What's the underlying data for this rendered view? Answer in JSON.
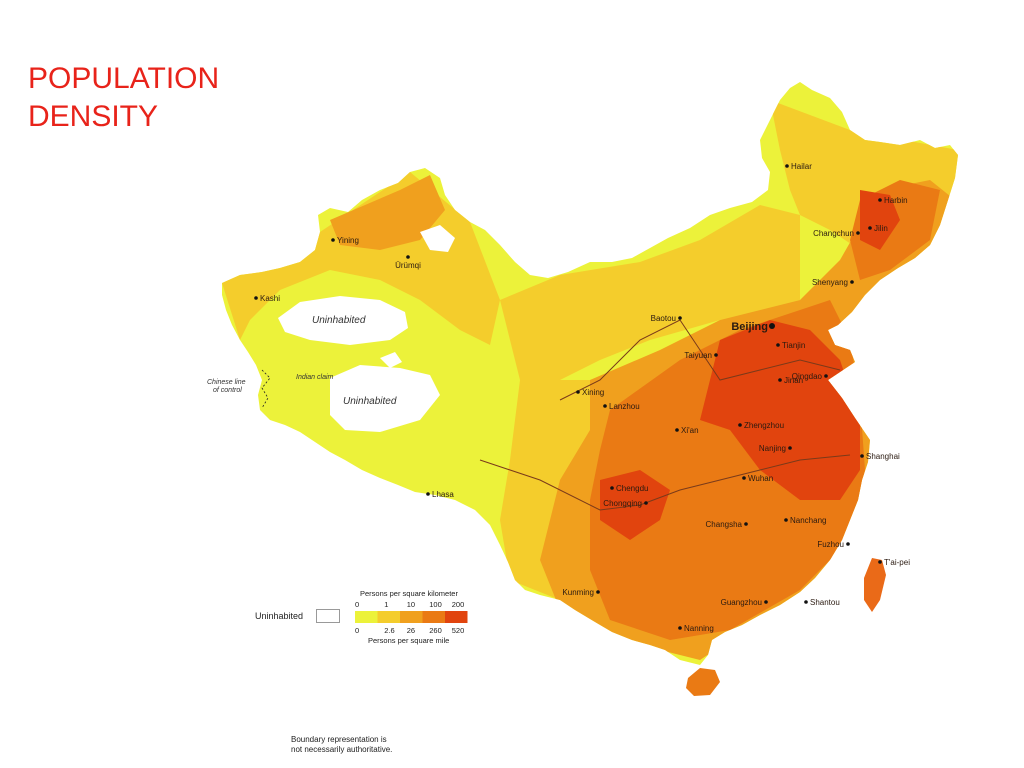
{
  "title": {
    "line1": "POPULATION",
    "line2": "DENSITY"
  },
  "colors": {
    "title": "#e8231a",
    "class0": "#ecf23a",
    "class1": "#f4cd2c",
    "class2": "#f0a01e",
    "class3": "#ea7a14",
    "class4": "#e1440e",
    "uninhabited": "#ffffff",
    "taiwan": "#ea6a18"
  },
  "regions": {
    "uninhabited_1": "Uninhabited",
    "uninhabited_2": "Uninhabited",
    "indian_claim": "Indian claim",
    "chinese_line_1": "Chinese line",
    "chinese_line_2": "of control"
  },
  "cities": [
    {
      "name": "Hailar",
      "id": "hailar"
    },
    {
      "name": "Harbin",
      "id": "harbin"
    },
    {
      "name": "Jilin",
      "id": "jilin"
    },
    {
      "name": "Changchun",
      "id": "changchun"
    },
    {
      "name": "Shenyang",
      "id": "shenyang"
    },
    {
      "name": "Baotou",
      "id": "baotou"
    },
    {
      "name": "Beijing",
      "id": "beijing"
    },
    {
      "name": "Tianjin",
      "id": "tianjin"
    },
    {
      "name": "Taiyuan",
      "id": "taiyuan"
    },
    {
      "name": "Qingdao",
      "id": "qingdao"
    },
    {
      "name": "Jinan",
      "id": "jinan"
    },
    {
      "name": "Xining",
      "id": "xining"
    },
    {
      "name": "Lanzhou",
      "id": "lanzhou"
    },
    {
      "name": "Xi'an",
      "id": "xian"
    },
    {
      "name": "Zhengzhou",
      "id": "zhengzhou"
    },
    {
      "name": "Nanjing",
      "id": "nanjing"
    },
    {
      "name": "Shanghai",
      "id": "shanghai"
    },
    {
      "name": "Wuhan",
      "id": "wuhan"
    },
    {
      "name": "Chengdu",
      "id": "chengdu"
    },
    {
      "name": "Chongqing",
      "id": "chongqing"
    },
    {
      "name": "Changsha",
      "id": "changsha"
    },
    {
      "name": "Nanchang",
      "id": "nanchang"
    },
    {
      "name": "Fuzhou",
      "id": "fuzhou"
    },
    {
      "name": "T'ai-pei",
      "id": "taipei"
    },
    {
      "name": "Kunming",
      "id": "kunming"
    },
    {
      "name": "Guangzhou",
      "id": "guangzhou"
    },
    {
      "name": "Shantou",
      "id": "shantou"
    },
    {
      "name": "Nanning",
      "id": "nanning"
    },
    {
      "name": "Lhasa",
      "id": "lhasa"
    },
    {
      "name": "Yining",
      "id": "yining"
    },
    {
      "name": "Ürümqi",
      "id": "urumqi"
    },
    {
      "name": "Kashi",
      "id": "kashi"
    }
  ],
  "legend": {
    "uninhabited_label": "Uninhabited",
    "km_title": "Persons per square kilometer",
    "km_ticks": [
      "0",
      "1",
      "10",
      "100",
      "200"
    ],
    "mi_ticks": [
      "0",
      "2.6",
      "26",
      "260",
      "520"
    ],
    "mi_title": "Persons per square mile"
  },
  "footnote": {
    "line1": "Boundary representation is",
    "line2": "not necessarily authoritative."
  }
}
